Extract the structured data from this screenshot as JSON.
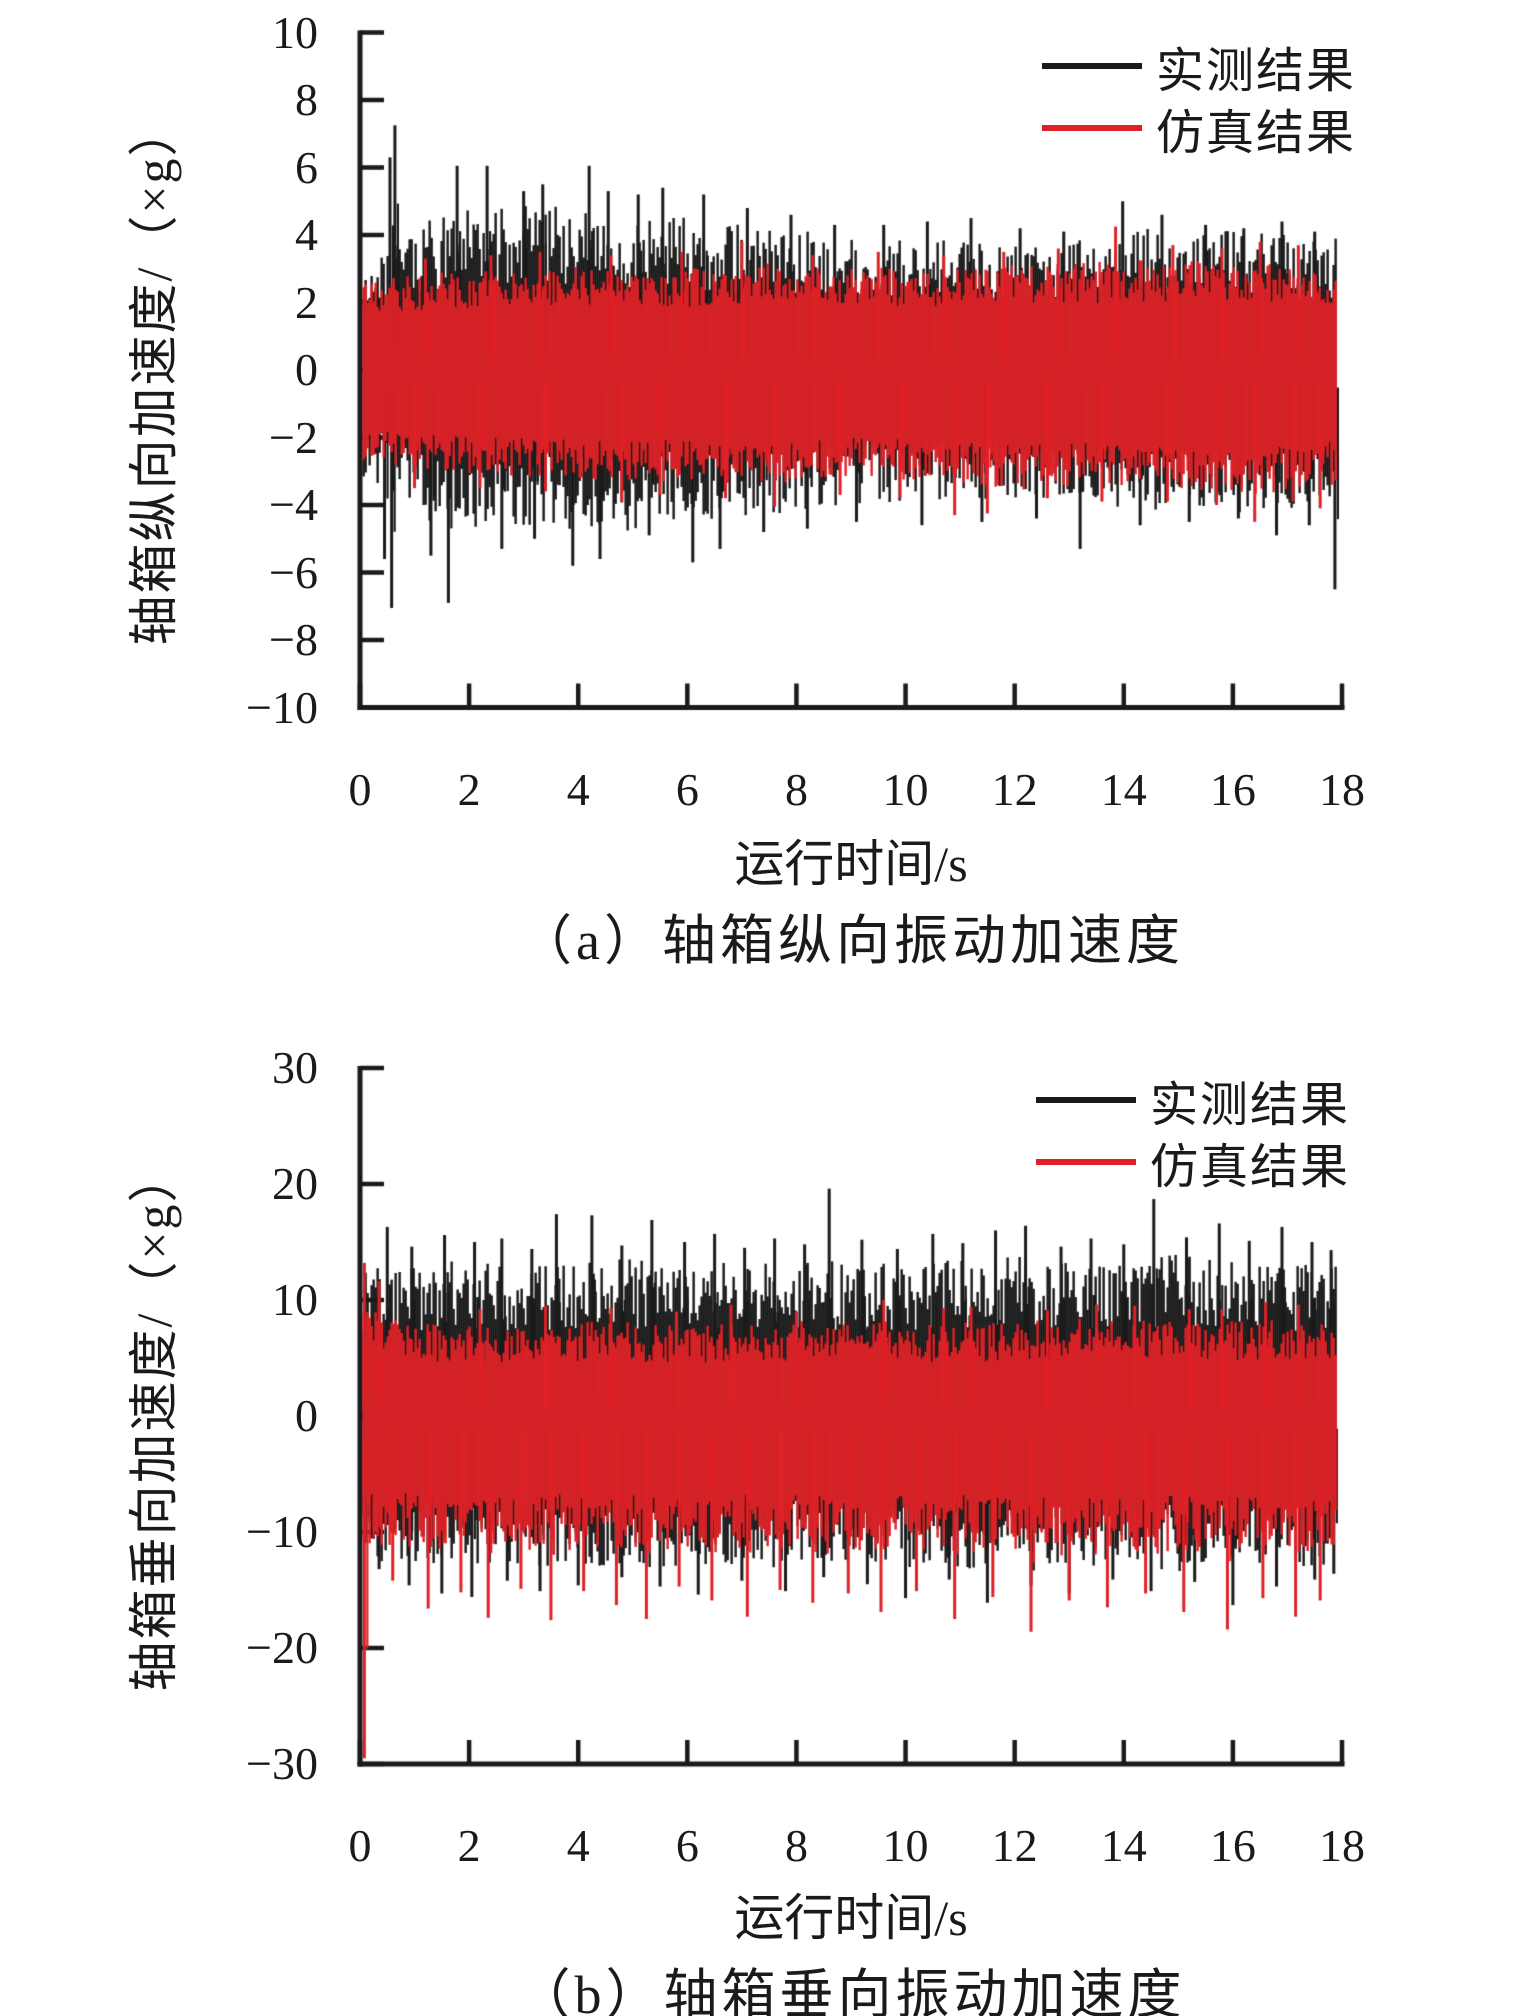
{
  "colors": {
    "measured": "#1a1a1a",
    "simulated": "#de2126",
    "axis": "#1a1a1a",
    "background": "#ffffff"
  },
  "chart_data": [
    {
      "id": "a",
      "type": "line",
      "caption": "（a）轴箱纵向振动加速度",
      "xlabel": "运行时间/s",
      "ylabel": "轴箱纵向加速度/（×g）",
      "xlim": [
        0,
        18
      ],
      "ylim": [
        -10,
        10
      ],
      "xticks": [
        0,
        2,
        4,
        6,
        8,
        10,
        12,
        14,
        16,
        18
      ],
      "yticks": [
        10,
        8,
        6,
        4,
        2,
        0,
        -2,
        -4,
        -6,
        -8,
        -10
      ],
      "grid": false,
      "legend_position": "top-right-inside",
      "legend": [
        {
          "label": "实测结果",
          "color": "#1a1a1a"
        },
        {
          "label": "仿真结果",
          "color": "#de2126"
        }
      ],
      "x_start": 0.03,
      "x_end": 17.9,
      "envelope_t": [
        0,
        1.5,
        3,
        4.5,
        6,
        7.5,
        9,
        10.5,
        12,
        13.5,
        15,
        16.5,
        18
      ],
      "series": [
        {
          "name": "实测结果",
          "key": "measured",
          "color": "#1a1a1a",
          "envelope_upper": [
            2.9,
            4.7,
            4.9,
            4.8,
            4.5,
            4.2,
            4.0,
            3.9,
            3.7,
            3.9,
            4.4,
            4.1,
            3.9
          ],
          "envelope_lower": [
            -3.1,
            -4.8,
            -4.6,
            -4.9,
            -4.5,
            -4.3,
            -4.0,
            -3.9,
            -3.8,
            -4.0,
            -4.3,
            -4.2,
            -4.0
          ],
          "peaks_upper": [
            [
              0.55,
              6.3
            ],
            [
              0.64,
              7.25
            ],
            [
              1.78,
              6.05
            ],
            [
              2.33,
              6.05
            ],
            [
              3.0,
              5.3
            ],
            [
              3.35,
              5.5
            ],
            [
              4.2,
              6.05
            ],
            [
              4.55,
              5.3
            ],
            [
              5.1,
              5.2
            ],
            [
              5.55,
              5.4
            ],
            [
              6.3,
              5.2
            ],
            [
              7.1,
              4.8
            ],
            [
              7.9,
              4.6
            ],
            [
              8.7,
              4.3
            ],
            [
              9.6,
              4.3
            ],
            [
              10.4,
              4.4
            ],
            [
              11.2,
              4.5
            ],
            [
              12.1,
              4.2
            ],
            [
              12.9,
              4.1
            ],
            [
              13.98,
              5.0
            ],
            [
              14.7,
              4.6
            ],
            [
              15.5,
              4.3
            ],
            [
              16.2,
              4.2
            ],
            [
              16.9,
              4.4
            ],
            [
              17.5,
              4.1
            ]
          ],
          "peaks_lower": [
            [
              0.45,
              -5.6
            ],
            [
              0.58,
              -7.05
            ],
            [
              1.3,
              -5.5
            ],
            [
              1.62,
              -6.9
            ],
            [
              2.6,
              -5.3
            ],
            [
              3.2,
              -5.0
            ],
            [
              3.9,
              -5.8
            ],
            [
              4.4,
              -5.6
            ],
            [
              5.3,
              -4.9
            ],
            [
              6.1,
              -5.7
            ],
            [
              6.6,
              -5.3
            ],
            [
              7.4,
              -4.8
            ],
            [
              8.2,
              -4.7
            ],
            [
              9.1,
              -4.5
            ],
            [
              10.3,
              -4.6
            ],
            [
              11.4,
              -4.5
            ],
            [
              12.4,
              -4.4
            ],
            [
              13.2,
              -5.3
            ],
            [
              14.3,
              -4.6
            ],
            [
              15.2,
              -4.5
            ],
            [
              16.1,
              -4.4
            ],
            [
              16.8,
              -4.9
            ],
            [
              17.4,
              -4.6
            ],
            [
              17.87,
              -6.5
            ]
          ]
        },
        {
          "name": "仿真结果",
          "key": "simulated",
          "color": "#de2126",
          "envelope_upper": [
            2.6,
            2.9,
            3.0,
            3.1,
            3.0,
            3.2,
            3.1,
            3.0,
            3.1,
            3.2,
            3.3,
            3.2,
            3.1
          ],
          "envelope_lower": [
            -2.7,
            -3.0,
            -3.2,
            -3.4,
            -3.3,
            -3.4,
            -3.2,
            -3.4,
            -3.6,
            -3.4,
            -3.5,
            -3.7,
            -3.4
          ],
          "peaks_upper": [
            [
              1.2,
              3.3
            ],
            [
              2.4,
              3.4
            ],
            [
              3.3,
              3.5
            ],
            [
              4.6,
              3.4
            ],
            [
              5.9,
              3.5
            ],
            [
              7.0,
              3.8
            ],
            [
              8.3,
              3.4
            ],
            [
              9.5,
              3.5
            ],
            [
              10.7,
              3.4
            ],
            [
              11.8,
              3.5
            ],
            [
              12.8,
              3.6
            ],
            [
              13.85,
              4.25
            ],
            [
              14.9,
              3.7
            ],
            [
              15.8,
              3.6
            ],
            [
              16.5,
              3.8
            ],
            [
              17.2,
              3.7
            ]
          ],
          "peaks_lower": [
            [
              1.0,
              -3.5
            ],
            [
              2.2,
              -3.5
            ],
            [
              3.4,
              -3.6
            ],
            [
              4.8,
              -3.9
            ],
            [
              5.5,
              -3.7
            ],
            [
              6.7,
              -3.8
            ],
            [
              7.6,
              -4.05
            ],
            [
              8.8,
              -3.7
            ],
            [
              9.9,
              -3.8
            ],
            [
              10.9,
              -4.3
            ],
            [
              11.5,
              -4.25
            ],
            [
              12.6,
              -3.8
            ],
            [
              13.6,
              -3.9
            ],
            [
              14.8,
              -3.9
            ],
            [
              15.7,
              -4.0
            ],
            [
              16.4,
              -4.5
            ],
            [
              17.1,
              -3.9
            ],
            [
              17.6,
              -4.1
            ]
          ]
        }
      ]
    },
    {
      "id": "b",
      "type": "line",
      "caption": "（b）轴箱垂向振动加速度",
      "xlabel": "运行时间/s",
      "ylabel": "轴箱垂向加速度/（×g）",
      "xlim": [
        0,
        18
      ],
      "ylim": [
        -30,
        30
      ],
      "xticks": [
        0,
        2,
        4,
        6,
        8,
        10,
        12,
        14,
        16,
        18
      ],
      "yticks": [
        30,
        20,
        10,
        0,
        -10,
        -20,
        -30
      ],
      "grid": false,
      "legend_position": "top-right-inside",
      "legend": [
        {
          "label": "实测结果",
          "color": "#1a1a1a"
        },
        {
          "label": "仿真结果",
          "color": "#de2126"
        }
      ],
      "x_start": 0.03,
      "x_end": 17.9,
      "envelope_t": [
        0,
        1.5,
        3,
        4.5,
        6,
        7.5,
        9,
        10.5,
        12,
        13.5,
        15,
        16.5,
        18
      ],
      "series": [
        {
          "name": "实测结果",
          "key": "measured",
          "color": "#1a1a1a",
          "envelope_upper": [
            13.0,
            13.5,
            13.0,
            13.8,
            13.2,
            13.6,
            13.0,
            13.4,
            13.8,
            13.2,
            14.0,
            13.4,
            13.0
          ],
          "envelope_lower": [
            -12.6,
            -13.2,
            -12.8,
            -13.4,
            -12.9,
            -13.3,
            -12.8,
            -13.2,
            -13.5,
            -12.9,
            -13.4,
            -13.1,
            -12.8
          ],
          "peaks_upper": [
            [
              0.5,
              16.3
            ],
            [
              0.95,
              14.6
            ],
            [
              1.55,
              15.6
            ],
            [
              2.1,
              15.0
            ],
            [
              2.6,
              15.3
            ],
            [
              3.15,
              14.4
            ],
            [
              3.6,
              17.4
            ],
            [
              4.25,
              17.3
            ],
            [
              4.8,
              14.7
            ],
            [
              5.35,
              16.9
            ],
            [
              5.95,
              15.0
            ],
            [
              6.5,
              15.7
            ],
            [
              7.05,
              14.5
            ],
            [
              7.6,
              15.3
            ],
            [
              8.15,
              14.8
            ],
            [
              8.6,
              19.6
            ],
            [
              9.2,
              15.2
            ],
            [
              9.85,
              14.4
            ],
            [
              10.5,
              15.7
            ],
            [
              11.05,
              14.9
            ],
            [
              11.65,
              16.0
            ],
            [
              12.2,
              16.4
            ],
            [
              12.85,
              14.6
            ],
            [
              13.4,
              15.3
            ],
            [
              14.0,
              14.8
            ],
            [
              14.55,
              18.7
            ],
            [
              15.15,
              15.4
            ],
            [
              15.75,
              16.6
            ],
            [
              16.3,
              15.1
            ],
            [
              16.9,
              16.3
            ],
            [
              17.45,
              15.0
            ],
            [
              17.8,
              14.3
            ]
          ],
          "peaks_lower": [
            [
              0.35,
              -13.2
            ],
            [
              0.9,
              -14.6
            ],
            [
              1.5,
              -15.3
            ],
            [
              2.05,
              -15.6
            ],
            [
              2.7,
              -14.2
            ],
            [
              3.3,
              -15.1
            ],
            [
              4.0,
              -14.6
            ],
            [
              4.8,
              -13.9
            ],
            [
              5.5,
              -14.7
            ],
            [
              6.2,
              -15.4
            ],
            [
              7.0,
              -14.2
            ],
            [
              7.8,
              -15.1
            ],
            [
              8.5,
              -13.9
            ],
            [
              9.3,
              -14.5
            ],
            [
              10.0,
              -15.7
            ],
            [
              10.8,
              -14.1
            ],
            [
              11.5,
              -16.1
            ],
            [
              12.3,
              -14.6
            ],
            [
              13.0,
              -15.3
            ],
            [
              13.8,
              -14.1
            ],
            [
              14.5,
              -15.1
            ],
            [
              15.3,
              -14.3
            ],
            [
              16.0,
              -16.3
            ],
            [
              16.8,
              -14.7
            ],
            [
              17.5,
              -14.1
            ],
            [
              17.85,
              -13.6
            ]
          ]
        },
        {
          "name": "仿真结果",
          "key": "simulated",
          "color": "#de2126",
          "envelope_upper": [
            9.5,
            7.8,
            8.0,
            8.2,
            7.8,
            8.1,
            8.4,
            8.0,
            8.2,
            8.5,
            8.1,
            8.3,
            8.0
          ],
          "envelope_lower": [
            -11.0,
            -11.5,
            -11.8,
            -11.4,
            -11.9,
            -11.5,
            -12.0,
            -11.6,
            -11.9,
            -12.2,
            -11.8,
            -12.0,
            -11.6
          ],
          "peaks_upper": [
            [
              0.08,
              13.2
            ],
            [
              0.35,
              11.6
            ],
            [
              2.2,
              9.2
            ],
            [
              3.4,
              9.5
            ],
            [
              4.6,
              9.3
            ],
            [
              5.8,
              9.0
            ],
            [
              6.8,
              9.6
            ],
            [
              8.0,
              9.0
            ],
            [
              9.6,
              10.0
            ],
            [
              10.7,
              9.3
            ],
            [
              11.2,
              9.4
            ],
            [
              12.6,
              9.1
            ],
            [
              13.5,
              9.6
            ],
            [
              14.2,
              9.5
            ],
            [
              15.2,
              9.2
            ],
            [
              15.8,
              9.2
            ],
            [
              16.6,
              9.8
            ],
            [
              17.2,
              9.6
            ]
          ],
          "peaks_lower": [
            [
              0.08,
              -29.5
            ],
            [
              0.6,
              -14.2
            ],
            [
              1.25,
              -16.6
            ],
            [
              1.85,
              -15.2
            ],
            [
              2.35,
              -17.4
            ],
            [
              2.95,
              -14.9
            ],
            [
              3.5,
              -17.6
            ],
            [
              4.1,
              -15.1
            ],
            [
              4.7,
              -16.3
            ],
            [
              5.25,
              -17.5
            ],
            [
              5.85,
              -14.7
            ],
            [
              6.45,
              -15.9
            ],
            [
              7.1,
              -17.3
            ],
            [
              7.7,
              -15.0
            ],
            [
              8.3,
              -16.1
            ],
            [
              8.95,
              -15.3
            ],
            [
              9.55,
              -16.9
            ],
            [
              10.2,
              -15.1
            ],
            [
              10.9,
              -17.5
            ],
            [
              11.6,
              -15.6
            ],
            [
              12.3,
              -18.6
            ],
            [
              13.0,
              -15.9
            ],
            [
              13.7,
              -16.5
            ],
            [
              14.4,
              -15.3
            ],
            [
              15.1,
              -16.9
            ],
            [
              15.9,
              -18.4
            ],
            [
              16.55,
              -15.7
            ],
            [
              17.15,
              -17.3
            ],
            [
              17.6,
              -15.9
            ]
          ]
        }
      ]
    }
  ]
}
